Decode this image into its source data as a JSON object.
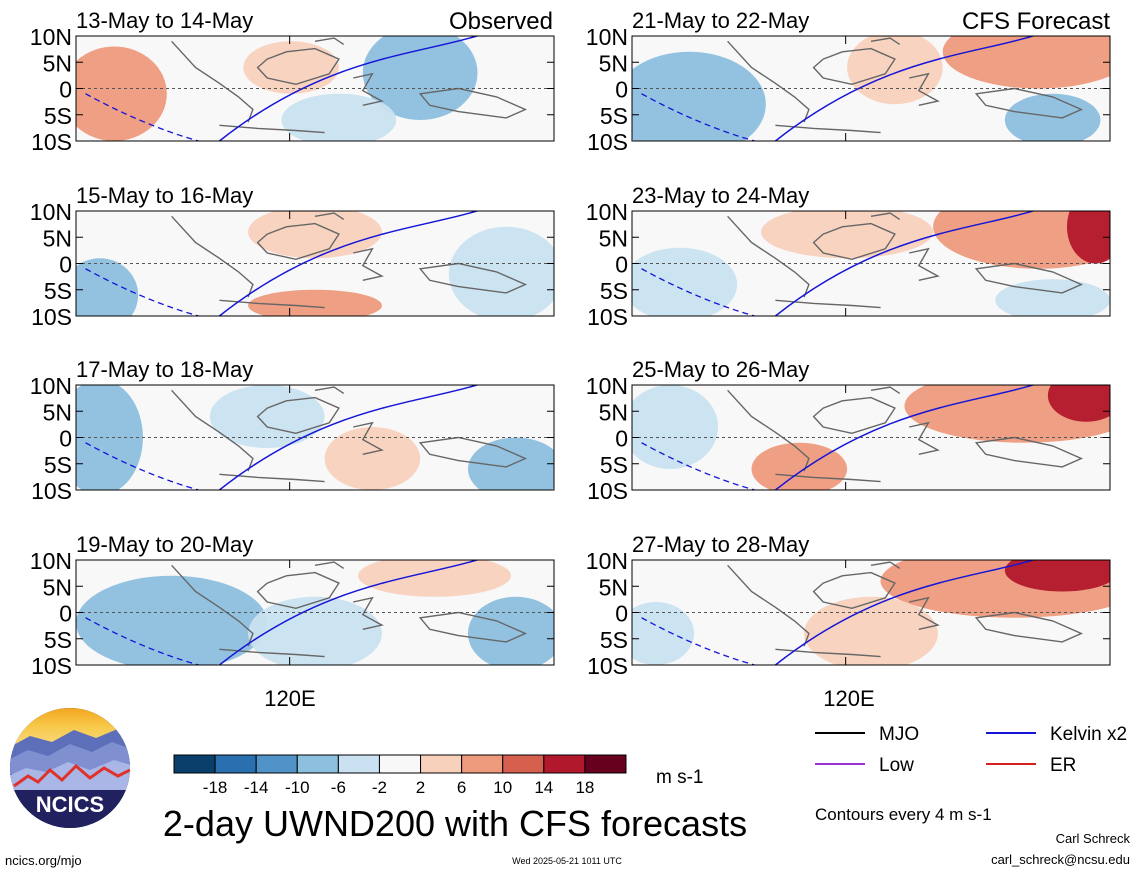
{
  "panel_titles": {
    "left_header": "Observed",
    "right_header": "CFS Forecast"
  },
  "axis": {
    "y_ticks": [
      "10N",
      "5N",
      "0",
      "5S",
      "10S"
    ],
    "x_tick": "120E"
  },
  "chart_data": [
    {
      "type": "heatmap",
      "title": "13-May to 14-May",
      "column": "Observed",
      "row": 1
    },
    {
      "type": "heatmap",
      "title": "15-May to 16-May",
      "column": "Observed",
      "row": 2
    },
    {
      "type": "heatmap",
      "title": "17-May to 18-May",
      "column": "Observed",
      "row": 3
    },
    {
      "type": "heatmap",
      "title": "19-May to 20-May",
      "column": "Observed",
      "row": 4
    },
    {
      "type": "heatmap",
      "title": "21-May to 22-May",
      "column": "CFS Forecast",
      "row": 1
    },
    {
      "type": "heatmap",
      "title": "23-May to 24-May",
      "column": "CFS Forecast",
      "row": 2
    },
    {
      "type": "heatmap",
      "title": "25-May to 26-May",
      "column": "CFS Forecast",
      "row": 3
    },
    {
      "type": "heatmap",
      "title": "27-May to 28-May",
      "column": "CFS Forecast",
      "row": 4
    }
  ],
  "colorbar": {
    "labels": [
      "-18",
      "-14",
      "-10",
      "-6",
      "-2",
      "2",
      "6",
      "10",
      "14",
      "18"
    ],
    "colors": [
      "#0b3f6b",
      "#2a6fb0",
      "#4f93c9",
      "#8dbfdf",
      "#c9e1f0",
      "#f8f8f8",
      "#f8d1bd",
      "#ee9a7c",
      "#d6604d",
      "#b2182b",
      "#67001f"
    ],
    "unit": "m s-1"
  },
  "legend": {
    "items": [
      {
        "label": "MJO",
        "color": "#000000"
      },
      {
        "label": "Kelvin x2",
        "color": "#1515d8"
      },
      {
        "label": "Low",
        "color": "#9b30d9"
      },
      {
        "label": "ER",
        "color": "#d62020"
      }
    ],
    "contours_note": "Contours every 4 m s-1"
  },
  "main_title": "2-day UWND200 with CFS forecasts",
  "logo_text": "NCICS",
  "footer": {
    "url": "ncics.org/mjo",
    "timestamp": "Wed 2025-05-21 1011 UTC",
    "author": "Carl Schreck",
    "email": "carl_schreck@ncsu.edu"
  }
}
